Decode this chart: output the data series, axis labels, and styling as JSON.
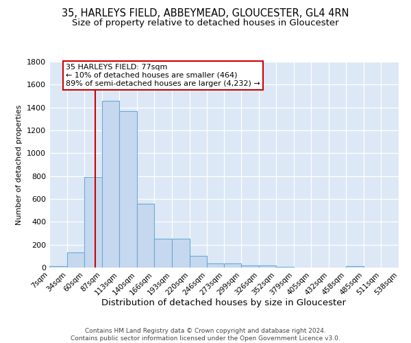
{
  "title1": "35, HARLEYS FIELD, ABBEYMEAD, GLOUCESTER, GL4 4RN",
  "title2": "Size of property relative to detached houses in Gloucester",
  "xlabel": "Distribution of detached houses by size in Gloucester",
  "ylabel": "Number of detached properties",
  "footnote": "Contains HM Land Registry data © Crown copyright and database right 2024.\nContains public sector information licensed under the Open Government Licence v3.0.",
  "bins": [
    7,
    34,
    60,
    87,
    113,
    140,
    166,
    193,
    220,
    246,
    273,
    299,
    326,
    352,
    379,
    405,
    432,
    458,
    485,
    511,
    538
  ],
  "bar_heights": [
    10,
    130,
    790,
    1460,
    1370,
    560,
    250,
    250,
    100,
    35,
    35,
    20,
    20,
    5,
    0,
    0,
    0,
    10,
    0,
    0
  ],
  "bar_color": "#c5d8ef",
  "bar_edge_color": "#6aaad4",
  "vline_x": 77,
  "vline_color": "#cc0000",
  "annotation_text": "35 HARLEYS FIELD: 77sqm\n← 10% of detached houses are smaller (464)\n89% of semi-detached houses are larger (4,232) →",
  "annotation_box_color": "#ffffff",
  "annotation_box_edge": "#cc0000",
  "ylim": [
    0,
    1800
  ],
  "yticks": [
    0,
    200,
    400,
    600,
    800,
    1000,
    1200,
    1400,
    1600,
    1800
  ],
  "bg_color": "#dce8f5",
  "grid_color": "#ffffff",
  "title1_fontsize": 10.5,
  "title2_fontsize": 9.5,
  "xlabel_fontsize": 9.5,
  "ylabel_fontsize": 8,
  "annotation_fontsize": 8,
  "footnote_fontsize": 6.5
}
